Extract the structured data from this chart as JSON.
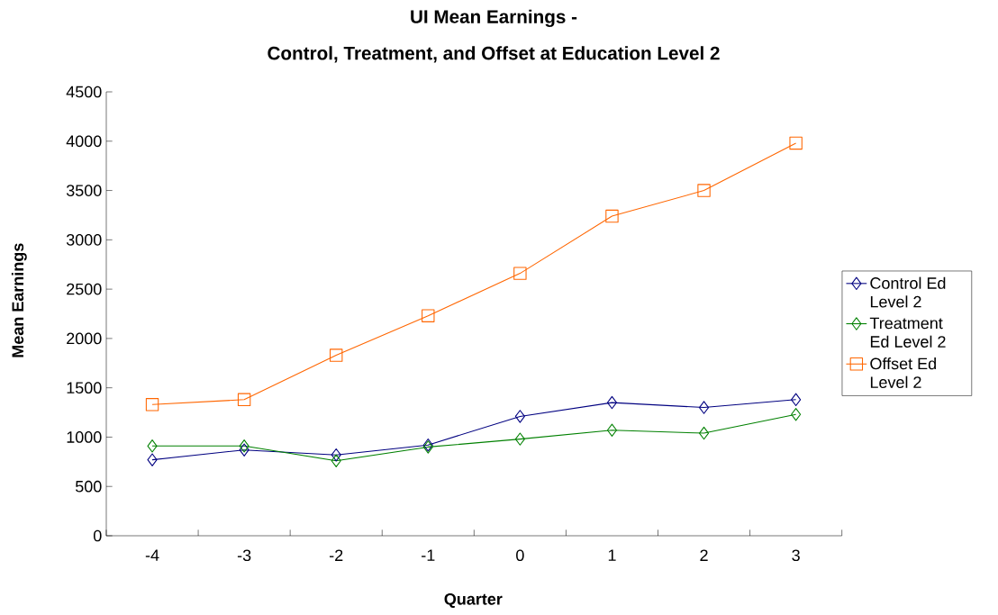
{
  "chart_data": {
    "type": "line",
    "title": "UI Mean Earnings -",
    "subtitle": "Control, Treatment, and Offset at Education Level 2",
    "xlabel": "Quarter",
    "ylabel": "Mean Earnings",
    "categories": [
      "-4",
      "-3",
      "-2",
      "-1",
      "0",
      "1",
      "2",
      "3"
    ],
    "series": [
      {
        "name": "Control Ed Level 2",
        "color": "#000080",
        "marker": "diamond",
        "values": [
          770,
          870,
          820,
          920,
          1210,
          1350,
          1300,
          1380
        ]
      },
      {
        "name": "Treatment Ed Level 2",
        "color": "#008000",
        "marker": "diamond",
        "values": [
          910,
          910,
          760,
          900,
          980,
          1070,
          1040,
          1230
        ]
      },
      {
        "name": "Offset Ed Level 2",
        "color": "#ff6600",
        "marker": "square",
        "values": [
          1330,
          1380,
          1830,
          2230,
          2660,
          3240,
          3500,
          3980
        ]
      }
    ],
    "ylim": [
      0,
      4500
    ],
    "yticks": [
      0,
      500,
      1000,
      1500,
      2000,
      2500,
      3000,
      3500,
      4000,
      4500
    ],
    "grid": false,
    "legend": "right",
    "line_style": "solid"
  }
}
